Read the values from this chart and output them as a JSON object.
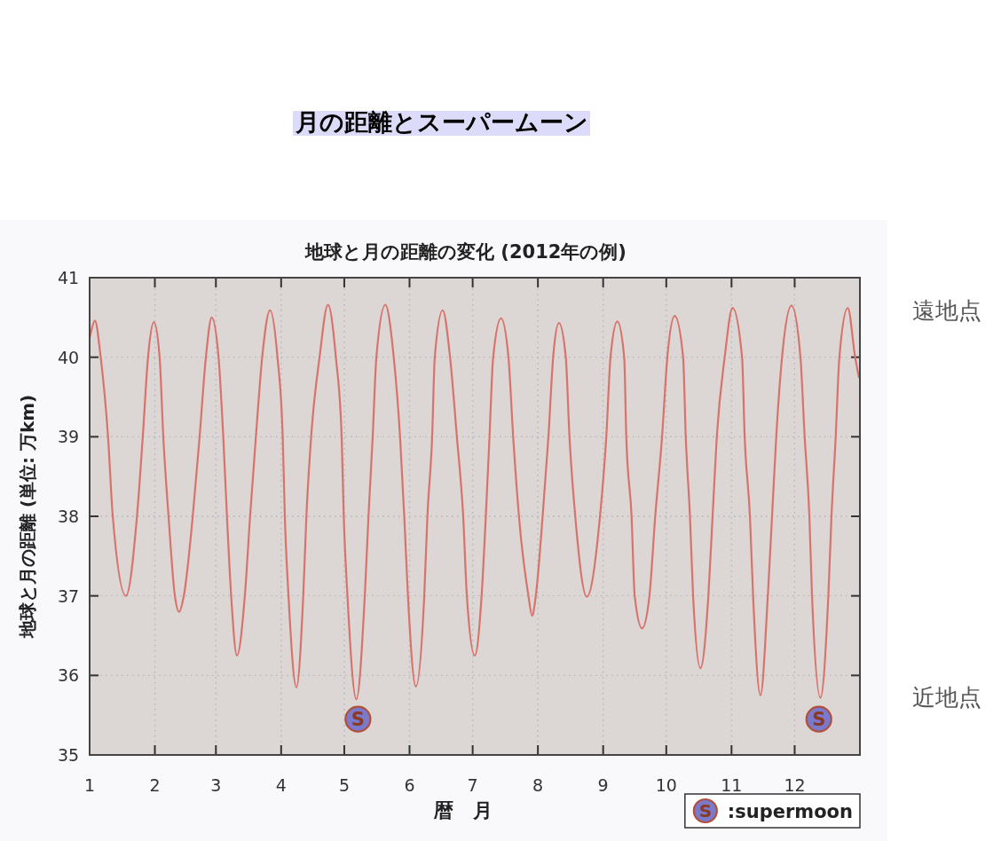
{
  "chart_data": {
    "type": "line",
    "title": "月の距離とスーパームーン",
    "subtitle": "地球と月の距離の変化 (2012年の例)",
    "xlabel": "暦　月",
    "ylabel": "地球と月の距離 (単位: 万km)",
    "annotations": [
      "遠地点",
      "近地点"
    ],
    "xlim": [
      "2012-01-01",
      "2013-01-01"
    ],
    "xticks": [
      {
        "value": "2012-01-01",
        "label": "1"
      },
      {
        "value": "2012-02-01",
        "label": "2"
      },
      {
        "value": "2012-03-01",
        "label": "3"
      },
      {
        "value": "2012-04-01",
        "label": "4"
      },
      {
        "value": "2012-05-01",
        "label": "5"
      },
      {
        "value": "2012-06-01",
        "label": "6"
      },
      {
        "value": "2012-07-01",
        "label": "7"
      },
      {
        "value": "2012-08-01",
        "label": "8"
      },
      {
        "value": "2012-09-01",
        "label": "9"
      },
      {
        "value": "2012-10-01",
        "label": "10"
      },
      {
        "value": "2012-11-01",
        "label": "11"
      },
      {
        "value": "2012-12-01",
        "label": "12"
      }
    ],
    "ylim": [
      35,
      41
    ],
    "yticks": [
      35,
      36,
      37,
      38,
      39,
      40,
      41
    ],
    "grid": true,
    "legend": "bottom right",
    "series": [
      {
        "color": "#d8736c",
        "x": [
          "2012-01-01T00:00",
          "2012-01-03T12:00",
          "2012-01-06T06:00",
          "2012-01-09T18:00",
          "2012-01-12T00:00",
          "2012-01-18T06:00",
          "2012-01-23T12:00",
          "2012-01-26T06:00",
          "2012-01-28T18:00",
          "2012-01-31T12:00",
          "2012-02-03T06:00",
          "2012-02-05T00:00",
          "2012-02-07T12:00",
          "2012-02-10T12:00",
          "2012-02-12T12:00",
          "2012-02-14T18:00",
          "2012-02-19T00:00",
          "2012-02-22T06:00",
          "2012-02-25T06:00",
          "2012-02-28T00:00",
          "2012-03-02T06:00",
          "2012-03-04T12:00",
          "2012-03-06T06:00",
          "2012-03-08T06:00",
          "2012-03-11T00:00",
          "2012-03-14T18:00",
          "2012-03-17T06:00",
          "2012-03-20T00:00",
          "2012-03-23T00:00",
          "2012-03-26T18:00",
          "2012-03-30T06:00",
          "2012-04-01T18:00",
          "2012-04-02T18:00",
          "2012-04-04T12:00",
          "2012-04-08T06:00",
          "2012-04-11T12:00",
          "2012-04-13T00:00",
          "2012-04-15T06:00",
          "2012-04-19T06:00",
          "2012-04-23T06:00",
          "2012-04-27T00:00",
          "2012-04-29T18:00",
          "2012-04-30T18:00",
          "2012-05-02T12:00",
          "2012-05-06T18:00",
          "2012-05-10T18:00",
          "2012-05-12T12:00",
          "2012-05-14T12:00",
          "2012-05-16T06:00",
          "2012-05-20T12:00",
          "2012-05-24T12:00",
          "2012-05-27T12:00",
          "2012-05-29T12:00",
          "2012-05-31T06:00",
          "2012-06-04T00:00",
          "2012-06-08T00:00",
          "2012-06-09T12:00",
          "2012-06-11T18:00",
          "2012-06-13T00:00",
          "2012-06-16T18:00",
          "2012-06-20T06:00",
          "2012-06-23T12:00",
          "2012-06-26T12:00",
          "2012-06-28T06:00",
          "2012-07-02T00:00",
          "2012-07-05T06:00",
          "2012-07-07T06:00",
          "2012-07-09T00:00",
          "2012-07-10T18:00",
          "2012-07-14T12:00",
          "2012-07-18T00:00",
          "2012-07-20T06:00",
          "2012-07-23T00:00",
          "2012-07-27T12:00",
          "2012-07-29T06:00",
          "2012-07-31T00:00",
          "2012-08-03T06:00",
          "2012-08-06T00:00",
          "2012-08-08T06:00",
          "2012-08-11T00:00",
          "2012-08-14T06:00",
          "2012-08-16T00:00",
          "2012-08-18T18:00",
          "2012-08-24T06:00",
          "2012-08-30T12:00",
          "2012-09-02T12:00",
          "2012-09-04T12:00",
          "2012-09-07T18:00",
          "2012-09-11T00:00",
          "2012-09-12T00:00",
          "2012-09-14T12:00",
          "2012-09-16T00:00",
          "2012-09-19T12:00",
          "2012-09-23T00:00",
          "2012-09-25T18:00",
          "2012-09-29T00:00",
          "2012-10-01T12:00",
          "2012-10-05T00:00",
          "2012-10-09T00:00",
          "2012-10-10T06:00",
          "2012-10-12T06:00",
          "2012-10-13T18:00",
          "2012-10-17T06:00",
          "2012-10-21T00:00",
          "2012-10-23T00:00",
          "2012-10-25T00:00",
          "2012-10-28T18:00",
          "2012-11-01T12:00",
          "2012-11-06T00:00",
          "2012-11-07T06:00",
          "2012-11-09T18:00",
          "2012-11-11T06:00",
          "2012-11-14T18:00",
          "2012-11-18T06:00",
          "2012-11-20T06:00",
          "2012-11-22T06:00",
          "2012-11-25T00:00",
          "2012-11-29T12:00",
          "2012-12-03T18:00",
          "2012-12-05T18:00",
          "2012-12-08T00:00",
          "2012-12-09T06:00",
          "2012-12-13T06:00",
          "2012-12-17T00:00",
          "2012-12-18T12:00",
          "2012-12-20T12:00",
          "2012-12-22T06:00",
          "2012-12-26T06:00",
          "2012-12-29T18:00",
          "2012-12-31T12:00"
        ],
        "values": [
          40.25,
          40.46,
          40,
          39,
          38,
          37.0,
          38,
          39,
          40,
          40.44,
          40,
          39,
          38,
          37,
          36.8,
          37,
          38,
          39,
          40,
          40.5,
          40,
          39,
          38,
          37,
          36.25,
          37,
          38,
          39,
          40,
          40.59,
          40,
          39,
          38,
          37,
          35.85,
          37,
          38,
          39,
          40,
          40.66,
          40,
          39,
          38,
          37,
          35.7,
          37,
          38,
          39,
          40,
          40.66,
          40,
          39,
          38,
          37,
          35.86,
          37,
          38,
          39,
          40,
          40.59,
          40,
          39,
          38,
          37,
          36.25,
          37,
          38,
          39,
          40,
          40.49,
          40,
          39,
          38,
          37,
          36.75,
          37,
          38,
          39,
          40,
          40.43,
          40,
          39,
          38,
          36.99,
          38,
          39,
          40,
          40.45,
          40,
          39,
          38,
          37,
          36.59,
          37,
          38,
          39,
          40,
          40.52,
          40,
          39,
          38,
          37,
          36.09,
          37,
          38,
          39,
          40,
          40.62,
          40,
          39,
          38,
          37,
          35.75,
          37,
          38,
          39,
          40,
          40.65,
          40,
          39,
          38,
          37,
          35.72,
          37,
          38,
          39,
          40,
          40.62,
          40,
          39.75
        ]
      },
      {
        "name": ":supermoon",
        "type": "scatter",
        "marker": "circle",
        "color": "#7b79c9",
        "x": [
          "2012-05-07T12:00",
          "2012-12-12T12:00"
        ],
        "values": [
          35.45,
          35.45
        ],
        "value_labels": [
          "S",
          "S"
        ]
      }
    ]
  }
}
